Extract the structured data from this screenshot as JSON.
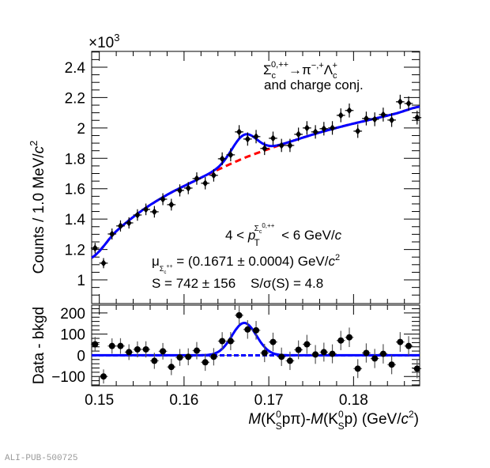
{
  "chart_data": [
    {
      "type": "scatter",
      "panel": "top",
      "title": "",
      "ylabel": "Counts / 1.0 MeV/c²",
      "ylabel_parts": {
        "main": "Counts / 1.0 MeV/",
        "var": "c",
        "sup": "2"
      },
      "y_multiplier": "×10",
      "y_multiplier_exp": "3",
      "xlim": [
        0.1491,
        0.1878
      ],
      "ylim": [
        844,
        2504
      ],
      "yticks": [
        1000,
        1200,
        1400,
        1600,
        1800,
        2000,
        2200,
        2400
      ],
      "ytick_labels": [
        "1",
        "1.2",
        "1.4",
        "1.6",
        "1.8",
        "2",
        "2.2",
        "2.4"
      ],
      "x": [
        0.1495,
        0.1505,
        0.1515,
        0.1525,
        0.1535,
        0.1545,
        0.1555,
        0.1565,
        0.1575,
        0.1585,
        0.1595,
        0.1605,
        0.1615,
        0.1625,
        0.1635,
        0.1645,
        0.1655,
        0.1665,
        0.1675,
        0.1685,
        0.1695,
        0.1705,
        0.1715,
        0.1725,
        0.1735,
        0.1745,
        0.1755,
        0.1765,
        0.1775,
        0.1785,
        0.1795,
        0.1805,
        0.1815,
        0.1825,
        0.1835,
        0.1845,
        0.1855,
        0.1865,
        0.1875
      ],
      "series": [
        {
          "name": "Data",
          "color": "#000000",
          "values": [
            1209,
            1110,
            1302,
            1355,
            1375,
            1427,
            1464,
            1448,
            1531,
            1495,
            1589,
            1604,
            1667,
            1636,
            1688,
            1797,
            1823,
            1974,
            1927,
            1943,
            1865,
            1932,
            1885,
            1885,
            1958,
            2000,
            1974,
            1995,
            2000,
            2083,
            2115,
            1979,
            2062,
            2057,
            2088,
            2052,
            2172,
            2161,
            2068
          ]
        },
        {
          "name": "Background fit",
          "type": "line",
          "style": "dashed",
          "color": "#ff0000",
          "x": [
            0.1491,
            0.152,
            0.155,
            0.158,
            0.161,
            0.164,
            0.167,
            0.17,
            0.173,
            0.176,
            0.179,
            0.182,
            0.185,
            0.1878
          ],
          "values": [
            1146,
            1320,
            1455,
            1560,
            1645,
            1725,
            1800,
            1862,
            1918,
            1970,
            2015,
            2055,
            2095,
            2140
          ]
        },
        {
          "name": "Total fit",
          "type": "line",
          "color": "#0000ff",
          "signal": {
            "mean": 0.1671,
            "sigma": 0.00145,
            "amplitude_per_bin": 153
          }
        }
      ],
      "annotations": {
        "decay": {
          "sigma": "Σ",
          "sigma_sub": "c",
          "sigma_sup": "0,++",
          "arrow_pi": "→π",
          "pi_sup": "−,+",
          "lambda": "Λ",
          "lambda_sub": "c",
          "lambda_sup": "+"
        },
        "decay_line2": "and charge conj.",
        "pt_range": {
          "left": "4 < ",
          "p": "p",
          "p_sub": "T",
          "p_sup_base": "Σ",
          "p_sup_sub": "c",
          "p_sup_sup": "0,++",
          "right": " < 6 GeV/",
          "c": "c"
        },
        "mu": {
          "symbol": "μ",
          "sub": "Σ",
          "sub_sub": "c",
          "sub_sup": "++",
          "text": " = (0.1671 ± 0.0004) GeV/",
          "c": "c",
          "sup": "2"
        },
        "signal": "S = 742 ± 156",
        "significance": "S/σ(S) = 4.8"
      }
    },
    {
      "type": "scatter",
      "panel": "bottom",
      "ylabel": "Data - bkgd",
      "xlabel": "M(K⁰ₛpπ)-M(K⁰ₛp) (GeV/c²)",
      "xlabel_parts": {
        "m1": "M",
        "k1": "(K",
        "k_sup": "0",
        "k_sub": "S",
        "mid1": "pπ)-",
        "m2": "M",
        "k2": "(K",
        "end2": "p) (GeV/",
        "c": "c",
        "sup": "2",
        "close": ")"
      },
      "xlim": [
        0.1491,
        0.1878
      ],
      "ylim": [
        -144,
        237
      ],
      "xticks": [
        0.15,
        0.16,
        0.17,
        0.18
      ],
      "xtick_labels": [
        "0.15",
        "0.16",
        "0.17",
        "0.18"
      ],
      "yticks": [
        -100,
        0,
        100,
        200
      ],
      "ytick_labels": [
        "−100",
        "0",
        "100",
        "200"
      ],
      "x": [
        0.1495,
        0.1505,
        0.1515,
        0.1525,
        0.1535,
        0.1545,
        0.1555,
        0.1565,
        0.1575,
        0.1585,
        0.1595,
        0.1605,
        0.1615,
        0.1625,
        0.1635,
        0.1645,
        0.1655,
        0.1665,
        0.1675,
        0.1685,
        0.1695,
        0.1705,
        0.1715,
        0.1725,
        0.1735,
        0.1745,
        0.1755,
        0.1765,
        0.1775,
        0.1785,
        0.1795,
        0.1805,
        0.1815,
        0.1825,
        0.1835,
        0.1845,
        0.1855,
        0.1865,
        0.1875
      ],
      "series": [
        {
          "name": "Data - bkgd",
          "color": "#000000",
          "values": [
            52,
            -100,
            44,
            44,
            15,
            28,
            28,
            -26,
            19,
            -55,
            -10,
            -7,
            22,
            -33,
            -7,
            67,
            67,
            189,
            122,
            118,
            11,
            63,
            -7,
            -26,
            26,
            52,
            4,
            15,
            7,
            70,
            85,
            -63,
            11,
            -15,
            7,
            -44,
            63,
            44,
            -63
          ]
        },
        {
          "name": "Signal fit",
          "type": "line",
          "color": "#0000ff",
          "signal": {
            "mean": 0.1671,
            "sigma": 0.00145,
            "amplitude_per_bin": 153
          }
        },
        {
          "name": "Zero background",
          "type": "line",
          "style": "dashed",
          "color": "#0000ff"
        },
        {
          "name": "Zero reference",
          "type": "line",
          "style": "dotted",
          "color": "#888888"
        }
      ]
    }
  ],
  "footer": "ALI-PUB-500725"
}
